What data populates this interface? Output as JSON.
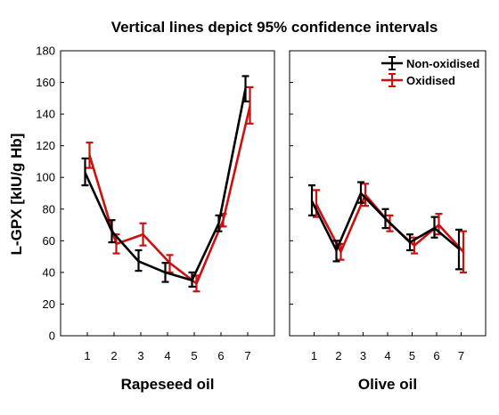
{
  "chart_data": {
    "type": "line",
    "title": "Vertical lines depict 95% confidence intervals",
    "ylabel": "L-GPX [kIU/g Hb]",
    "ylim": [
      0,
      180
    ],
    "yticks": [
      0,
      20,
      40,
      60,
      80,
      100,
      120,
      140,
      160,
      180
    ],
    "colors": {
      "Non-oxidised": "#000000",
      "Oxidised": "#cc1010"
    },
    "legend": {
      "position": "top-right",
      "entries": [
        "Non-oxidised",
        "Oxidised"
      ]
    },
    "panels": [
      {
        "xlabel": "Rapeseed oil",
        "x": [
          1,
          2,
          3,
          4,
          5,
          6,
          7
        ],
        "series": [
          {
            "name": "Non-oxidised",
            "values": [
              103,
              66,
              47,
              40,
              35,
              71,
              156
            ],
            "ci_low": [
              95,
              59,
              41,
              34,
              31,
              66,
              148
            ],
            "ci_high": [
              112,
              73,
              54,
              46,
              40,
              76,
              164
            ]
          },
          {
            "name": "Oxidised",
            "values": [
              114,
              58,
              64,
              46,
              33,
              73,
              145
            ],
            "ci_low": [
              106,
              52,
              57,
              40,
              28,
              69,
              134
            ],
            "ci_high": [
              122,
              64,
              71,
              51,
              38,
              77,
              157
            ]
          }
        ]
      },
      {
        "xlabel": "Olive oil",
        "x": [
          1,
          2,
          3,
          4,
          5,
          6,
          7
        ],
        "series": [
          {
            "name": "Non-oxidised",
            "values": [
              85,
              54,
              90,
              74,
              59,
              68,
              55
            ],
            "ci_low": [
              76,
              47,
              84,
              68,
              54,
              62,
              42
            ],
            "ci_high": [
              95,
              60,
              97,
              80,
              64,
              75,
              67
            ]
          },
          {
            "name": "Oxidised",
            "values": [
              83,
              53,
              89,
              71,
              57,
              70,
              53
            ],
            "ci_low": [
              75,
              48,
              82,
              66,
              52,
              64,
              40
            ],
            "ci_high": [
              92,
              58,
              96,
              76,
              62,
              77,
              66
            ]
          }
        ]
      }
    ]
  }
}
